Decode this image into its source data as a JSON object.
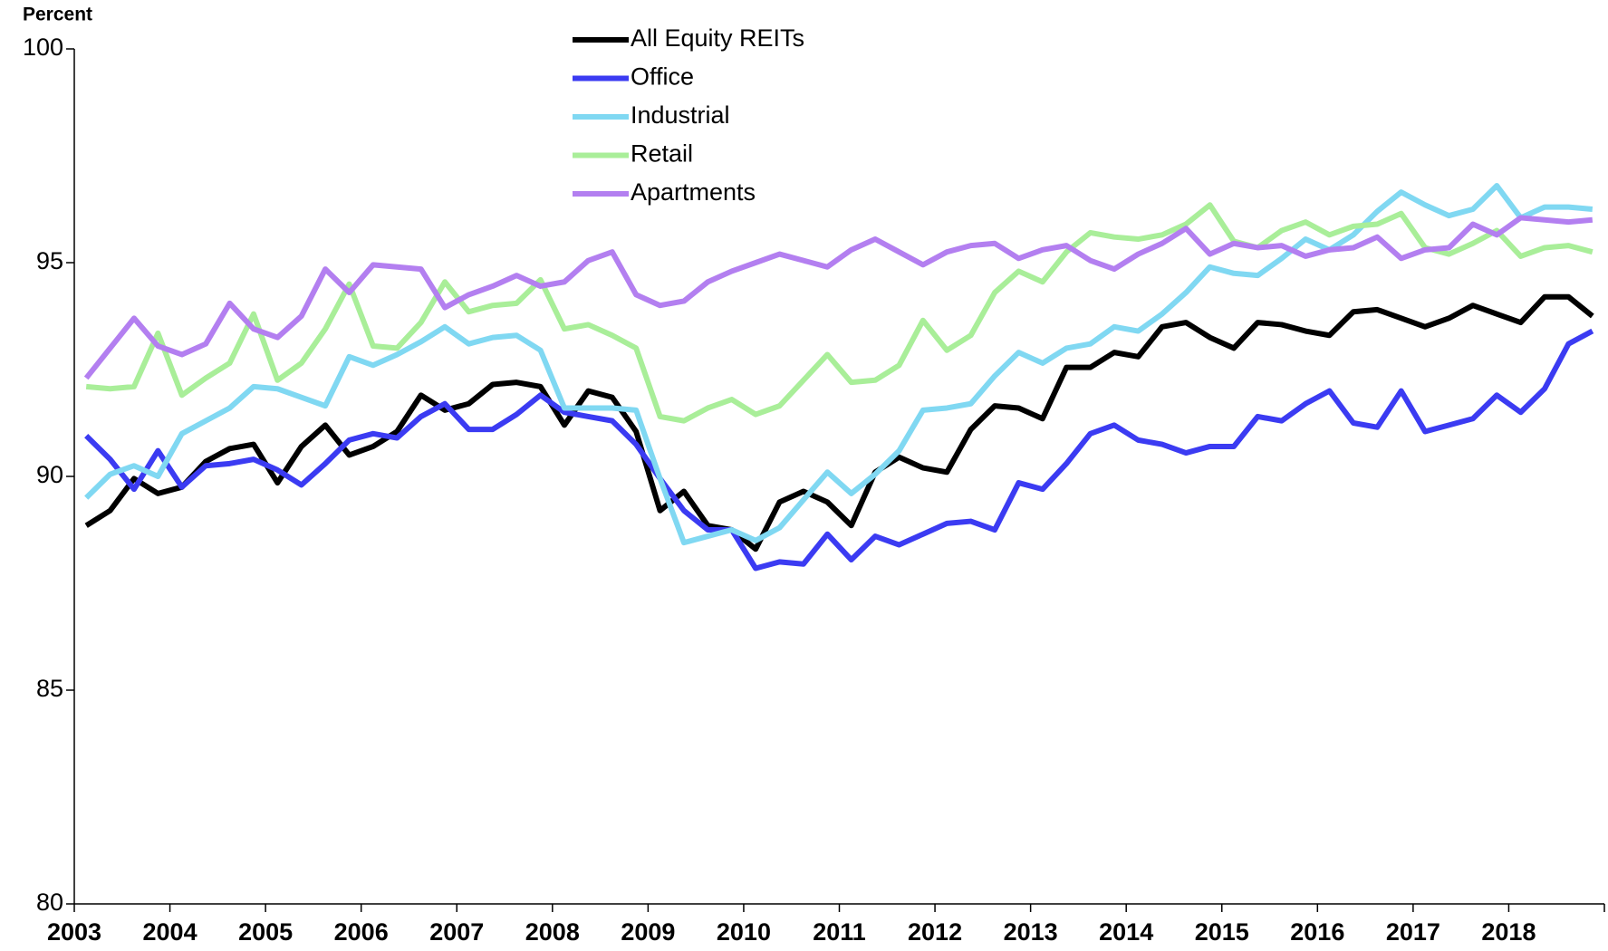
{
  "chart_data": {
    "type": "line",
    "y_label": "Percent",
    "x": [
      2003.125,
      2003.375,
      2003.625,
      2003.875,
      2004.125,
      2004.375,
      2004.625,
      2004.875,
      2005.125,
      2005.375,
      2005.625,
      2005.875,
      2006.125,
      2006.375,
      2006.625,
      2006.875,
      2007.125,
      2007.375,
      2007.625,
      2007.875,
      2008.125,
      2008.375,
      2008.625,
      2008.875,
      2009.125,
      2009.375,
      2009.625,
      2009.875,
      2010.125,
      2010.375,
      2010.625,
      2010.875,
      2011.125,
      2011.375,
      2011.625,
      2011.875,
      2012.125,
      2012.375,
      2012.625,
      2012.875,
      2013.125,
      2013.375,
      2013.625,
      2013.875,
      2014.125,
      2014.375,
      2014.625,
      2014.875,
      2015.125,
      2015.375,
      2015.625,
      2015.875,
      2016.125,
      2016.375,
      2016.625,
      2016.875,
      2017.125,
      2017.375,
      2017.625,
      2017.875,
      2018.125,
      2018.375,
      2018.625,
      2018.875
    ],
    "xlim": [
      2003,
      2019
    ],
    "xticks": [
      2003,
      2004,
      2005,
      2006,
      2007,
      2008,
      2009,
      2010,
      2011,
      2012,
      2013,
      2014,
      2015,
      2016,
      2017,
      2018
    ],
    "ylim": [
      80,
      100
    ],
    "yticks": [
      80,
      85,
      90,
      95,
      100
    ],
    "grid": false,
    "legend": "top",
    "series": [
      {
        "name": "All Equity REITs",
        "color": "#000000",
        "values": [
          88.85,
          89.2,
          89.95,
          89.6,
          89.75,
          90.35,
          90.65,
          90.75,
          89.85,
          90.7,
          91.2,
          90.5,
          90.7,
          91.05,
          91.9,
          91.55,
          91.7,
          92.15,
          92.2,
          92.1,
          91.2,
          92.0,
          91.85,
          91.05,
          89.2,
          89.65,
          88.85,
          88.75,
          88.3,
          89.4,
          89.65,
          89.4,
          88.85,
          90.1,
          90.45,
          90.2,
          90.1,
          91.1,
          91.65,
          91.6,
          91.35,
          92.55,
          92.55,
          92.9,
          92.8,
          93.5,
          93.6,
          93.25,
          93.0,
          93.6,
          93.55,
          93.4,
          93.3,
          93.85,
          93.9,
          93.7,
          93.5,
          93.7,
          94.0,
          93.8,
          93.6,
          94.2,
          94.2,
          93.75
        ]
      },
      {
        "name": "Office",
        "color": "#3b3bf2",
        "values": [
          90.95,
          90.4,
          89.7,
          90.6,
          89.75,
          90.25,
          90.3,
          90.4,
          90.15,
          89.8,
          90.3,
          90.85,
          91.0,
          90.9,
          91.4,
          91.7,
          91.1,
          91.1,
          91.45,
          91.9,
          91.5,
          91.4,
          91.3,
          90.75,
          89.95,
          89.2,
          88.75,
          88.75,
          87.85,
          88.0,
          87.95,
          88.65,
          88.05,
          88.6,
          88.4,
          88.65,
          88.9,
          88.95,
          88.75,
          89.85,
          89.7,
          90.3,
          91.0,
          91.2,
          90.85,
          90.75,
          90.55,
          90.7,
          90.7,
          91.4,
          91.3,
          91.7,
          92.0,
          91.25,
          91.15,
          92.0,
          91.05,
          91.2,
          91.35,
          91.9,
          91.5,
          92.05,
          93.1,
          93.4
        ]
      },
      {
        "name": "Industrial",
        "color": "#80d8f2",
        "values": [
          89.5,
          90.05,
          90.25,
          90.0,
          91.0,
          91.3,
          91.6,
          92.1,
          92.05,
          91.85,
          91.65,
          92.8,
          92.6,
          92.85,
          93.15,
          93.5,
          93.1,
          93.25,
          93.3,
          92.95,
          91.6,
          91.6,
          91.6,
          91.55,
          89.95,
          88.45,
          88.6,
          88.75,
          88.5,
          88.8,
          89.45,
          90.1,
          89.6,
          90.05,
          90.6,
          91.55,
          91.6,
          91.7,
          92.35,
          92.9,
          92.65,
          93.0,
          93.1,
          93.5,
          93.4,
          93.8,
          94.3,
          94.9,
          94.75,
          94.7,
          95.1,
          95.55,
          95.3,
          95.65,
          96.2,
          96.65,
          96.35,
          96.1,
          96.25,
          96.8,
          96.05,
          96.3,
          96.3,
          96.25
        ]
      },
      {
        "name": "Retail",
        "color": "#a9ee99",
        "values": [
          92.1,
          92.05,
          92.1,
          93.35,
          91.9,
          92.3,
          92.65,
          93.8,
          92.25,
          92.65,
          93.45,
          94.5,
          93.05,
          93.0,
          93.6,
          94.55,
          93.85,
          94.0,
          94.05,
          94.6,
          93.45,
          93.55,
          93.3,
          93.0,
          91.4,
          91.3,
          91.6,
          91.8,
          91.45,
          91.65,
          92.25,
          92.85,
          92.2,
          92.25,
          92.6,
          93.65,
          92.95,
          93.3,
          94.3,
          94.8,
          94.55,
          95.25,
          95.7,
          95.6,
          95.55,
          95.65,
          95.9,
          96.35,
          95.5,
          95.35,
          95.75,
          95.95,
          95.65,
          95.85,
          95.9,
          96.15,
          95.35,
          95.2,
          95.45,
          95.75,
          95.15,
          95.35,
          95.4,
          95.25
        ]
      },
      {
        "name": "Apartments",
        "color": "#b37ff0",
        "values": [
          92.3,
          93.0,
          93.7,
          93.05,
          92.85,
          93.1,
          94.05,
          93.45,
          93.25,
          93.75,
          94.85,
          94.3,
          94.95,
          94.9,
          94.85,
          93.95,
          94.25,
          94.45,
          94.7,
          94.45,
          94.55,
          95.05,
          95.25,
          94.25,
          94.0,
          94.1,
          94.55,
          94.8,
          95.0,
          95.2,
          95.05,
          94.9,
          95.3,
          95.55,
          95.25,
          94.95,
          95.25,
          95.4,
          95.45,
          95.1,
          95.3,
          95.4,
          95.05,
          94.85,
          95.2,
          95.45,
          95.8,
          95.2,
          95.45,
          95.35,
          95.4,
          95.15,
          95.3,
          95.35,
          95.6,
          95.1,
          95.3,
          95.35,
          95.9,
          95.65,
          96.05,
          96.0,
          95.95,
          96.0
        ]
      }
    ]
  }
}
